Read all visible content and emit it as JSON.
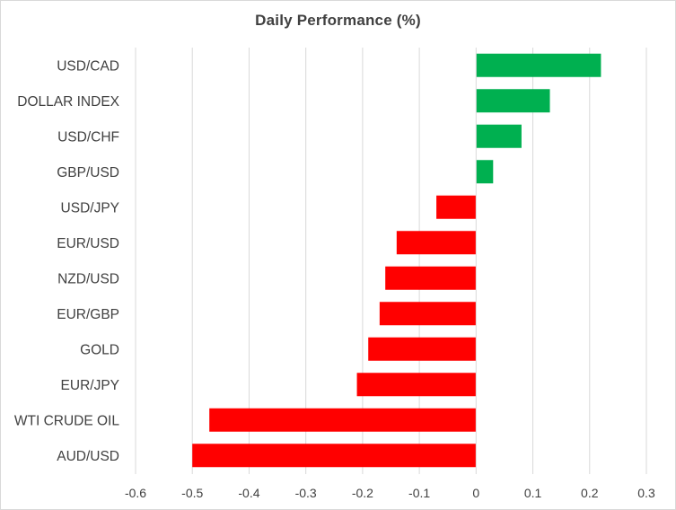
{
  "chart_data": {
    "type": "bar",
    "orientation": "horizontal",
    "title": "Daily Performance (%)",
    "xlabel": "",
    "ylabel": "",
    "xlim": [
      -0.6,
      0.3
    ],
    "ticks": [
      -0.6,
      -0.5,
      -0.4,
      -0.3,
      -0.2,
      -0.1,
      0,
      0.1,
      0.2,
      0.3
    ],
    "tick_labels": [
      "-0.6",
      "-0.5",
      "-0.4",
      "-0.3",
      "-0.2",
      "-0.1",
      "0",
      "0.1",
      "0.2",
      "0.3"
    ],
    "grid": true,
    "legend": "none",
    "positive_color": "#00b050",
    "negative_color": "#ff0000",
    "categories": [
      "USD/CAD",
      "DOLLAR INDEX",
      "USD/CHF",
      "GBP/USD",
      "USD/JPY",
      "EUR/USD",
      "NZD/USD",
      "EUR/GBP",
      "GOLD",
      "EUR/JPY",
      "WTI CRUDE OIL",
      "AUD/USD"
    ],
    "values": [
      0.22,
      0.13,
      0.08,
      0.03,
      -0.07,
      -0.14,
      -0.16,
      -0.17,
      -0.19,
      -0.21,
      -0.47,
      -0.5
    ]
  }
}
